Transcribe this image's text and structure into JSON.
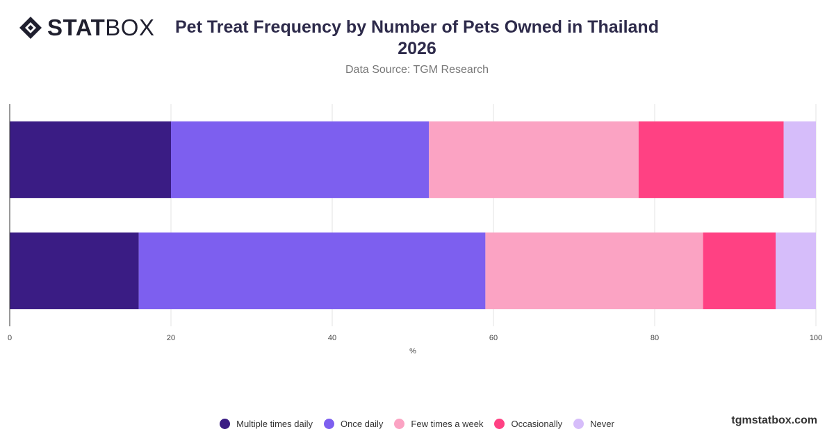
{
  "brand": {
    "logo_bold": "STAT",
    "logo_light": "BOX",
    "footer": "tgmstatbox.com"
  },
  "header": {
    "title": "Pet Treat Frequency by Number of Pets Owned in Thailand 2026",
    "subtitle": "Data Source: TGM Research"
  },
  "chart_data": {
    "type": "bar",
    "orientation": "horizontal",
    "stacked": true,
    "categories": [
      "",
      ""
    ],
    "xlabel": "%",
    "ylabel": "",
    "xlim": [
      0,
      100
    ],
    "xticks": [
      0,
      20,
      40,
      60,
      80,
      100
    ],
    "grid": true,
    "legend_position": "bottom",
    "series": [
      {
        "name": "Multiple times daily",
        "color": "#3a1c84",
        "values": [
          20,
          16
        ]
      },
      {
        "name": "Once daily",
        "color": "#7d5fef",
        "values": [
          32,
          43
        ]
      },
      {
        "name": "Few times a week",
        "color": "#fba3c3",
        "values": [
          26,
          27
        ]
      },
      {
        "name": "Occasionally",
        "color": "#ff4183",
        "values": [
          18,
          9
        ]
      },
      {
        "name": "Never",
        "color": "#d6bdfa",
        "values": [
          4,
          5
        ]
      }
    ]
  }
}
